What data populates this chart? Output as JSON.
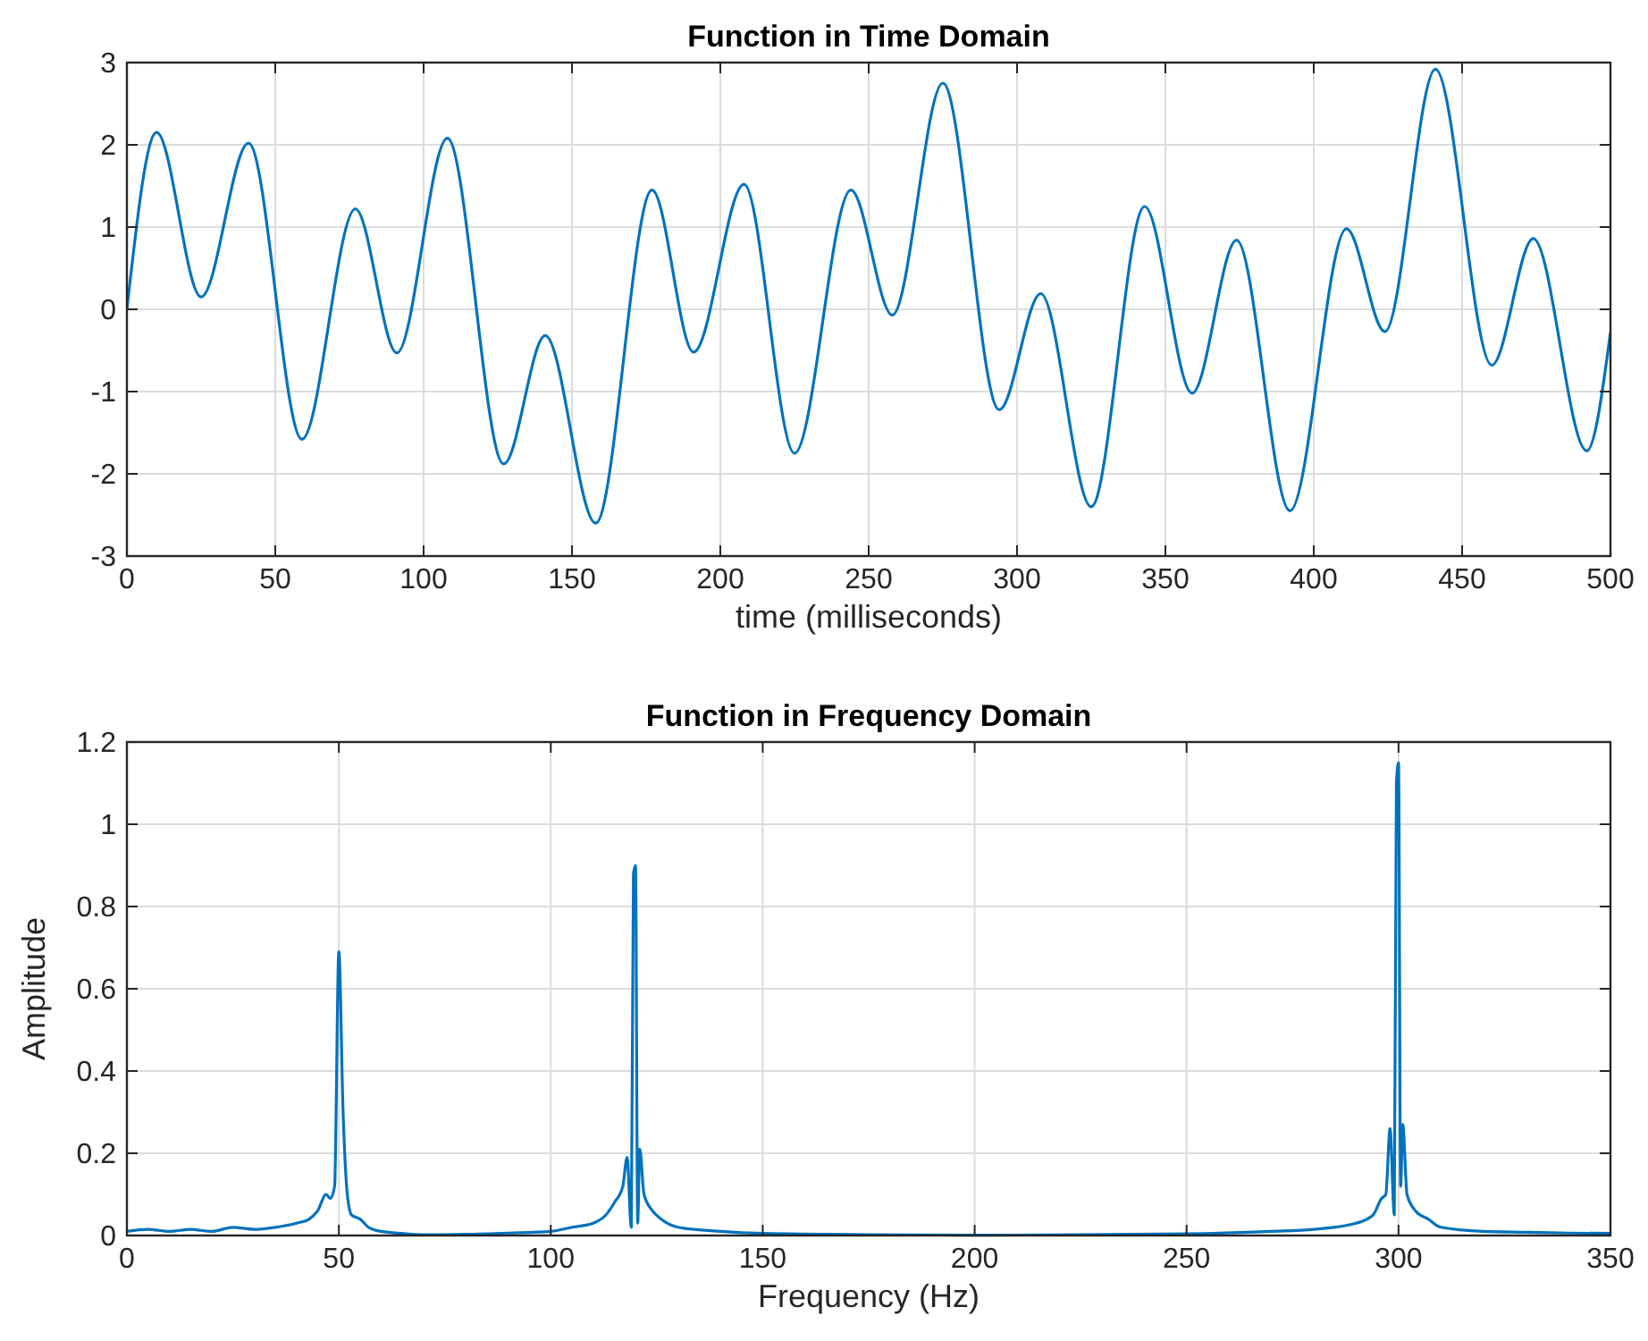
{
  "chart_data": [
    {
      "type": "line",
      "title": "Function in Time Domain",
      "xlabel": "time (milliseconds)",
      "xlim": [
        0,
        500
      ],
      "xticks": [
        0,
        50,
        100,
        150,
        200,
        250,
        300,
        350,
        400,
        450,
        500
      ],
      "ylim": [
        -3,
        3
      ],
      "yticks": [
        -3,
        -2,
        -1,
        0,
        1,
        2,
        3
      ],
      "grid": true,
      "line_style": "solid",
      "series": [
        {
          "color": "#0072bd",
          "x": [
            0,
            10,
            25,
            41,
            59,
            77,
            91,
            108,
            127,
            141,
            158,
            177,
            191,
            208,
            225,
            244,
            258,
            275,
            294,
            308,
            325,
            343,
            359,
            374,
            392,
            411,
            424,
            441,
            460,
            474,
            492,
            500
          ],
          "values": [
            0,
            2.15,
            0.15,
            2.02,
            -1.58,
            1.22,
            -0.53,
            2.08,
            -1.88,
            -0.32,
            -2.6,
            1.45,
            -0.52,
            1.52,
            -1.75,
            1.45,
            -0.07,
            2.75,
            -1.22,
            0.19,
            -2.4,
            1.25,
            -1.02,
            0.84,
            -2.45,
            0.98,
            -0.27,
            2.92,
            -0.68,
            0.86,
            -1.72,
            -0.28
          ]
        }
      ]
    },
    {
      "type": "line",
      "title": "Function in Frequency Domain",
      "xlabel": "Frequency (Hz)",
      "ylabel": "Amplitude",
      "xlim": [
        0,
        350
      ],
      "xticks": [
        0,
        50,
        100,
        150,
        200,
        250,
        300,
        350
      ],
      "ylim": [
        0,
        1.2
      ],
      "yticks": [
        0,
        0.2,
        0.4,
        0.6,
        0.8,
        1,
        1.2
      ],
      "grid": true,
      "line_style": "solid",
      "series": [
        {
          "color": "#0072bd",
          "x": [
            0,
            5,
            10,
            15,
            20,
            25,
            30,
            35,
            40,
            43,
            45,
            47,
            48,
            49,
            50,
            51,
            52,
            53,
            55,
            57,
            60,
            65,
            70,
            80,
            90,
            100,
            105,
            110,
            113,
            115,
            117,
            118,
            119,
            119.5,
            120,
            120.5,
            121,
            122,
            124,
            126,
            130,
            140,
            150,
            175,
            200,
            250,
            270,
            280,
            290,
            294,
            296,
            297,
            298,
            299,
            299.5,
            300,
            300.5,
            301,
            302,
            304,
            307,
            310,
            320,
            330,
            340,
            350
          ],
          "values": [
            0.01,
            0.015,
            0.01,
            0.015,
            0.01,
            0.02,
            0.015,
            0.02,
            0.03,
            0.04,
            0.06,
            0.1,
            0.09,
            0.12,
            0.69,
            0.3,
            0.1,
            0.05,
            0.04,
            0.02,
            0.01,
            0.005,
            0.002,
            0.003,
            0.006,
            0.01,
            0.02,
            0.03,
            0.05,
            0.08,
            0.12,
            0.19,
            0.02,
            0.88,
            0.9,
            0.03,
            0.21,
            0.1,
            0.06,
            0.04,
            0.02,
            0.01,
            0.005,
            0.002,
            0.001,
            0.004,
            0.01,
            0.015,
            0.03,
            0.05,
            0.09,
            0.1,
            0.26,
            0.05,
            1.1,
            1.15,
            0.12,
            0.27,
            0.1,
            0.06,
            0.04,
            0.02,
            0.01,
            0.008,
            0.006,
            0.005
          ]
        }
      ]
    }
  ]
}
